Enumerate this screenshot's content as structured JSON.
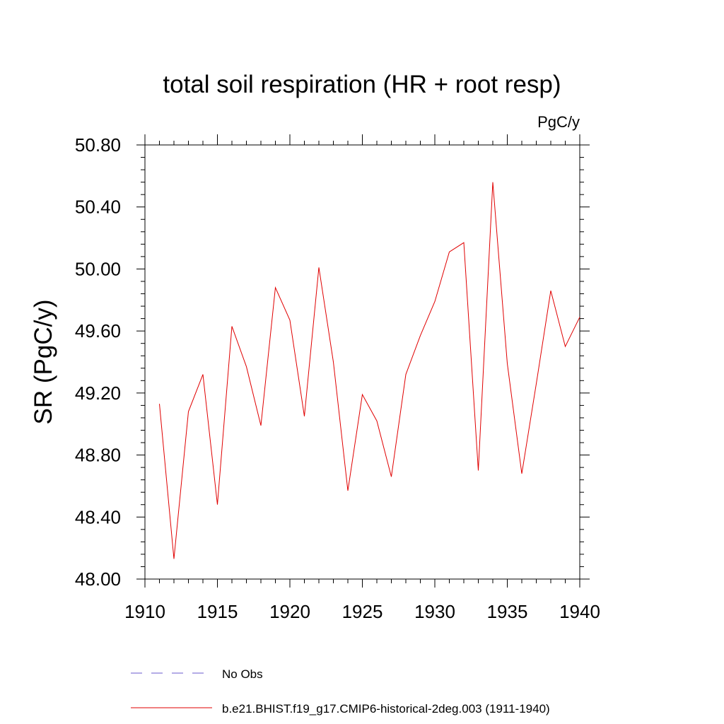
{
  "chart_data": {
    "type": "line",
    "title": "total soil respiration (HR + root resp)",
    "units": "PgC/y",
    "xlabel": "",
    "ylabel": "SR  (PgC/y)",
    "xlim": [
      1910,
      1940
    ],
    "ylim": [
      48.0,
      50.8
    ],
    "x_ticks": [
      1910,
      1915,
      1920,
      1925,
      1930,
      1935,
      1940
    ],
    "y_ticks": [
      48.0,
      48.4,
      48.8,
      49.2,
      49.6,
      50.0,
      50.4,
      50.8
    ],
    "x_tick_labels": [
      "1910",
      "1915",
      "1920",
      "1925",
      "1930",
      "1935",
      "1940"
    ],
    "y_tick_labels": [
      "48.00",
      "48.40",
      "48.80",
      "49.20",
      "49.60",
      "50.00",
      "50.40",
      "50.80"
    ],
    "grid": false,
    "legend_position": "bottom",
    "series": [
      {
        "name": "b.e21.BHIST.f19_g17.CMIP6-historical-2deg.003 (1911-1940)",
        "color": "#e00000",
        "style": "solid",
        "x": [
          1911,
          1912,
          1913,
          1914,
          1915,
          1916,
          1917,
          1918,
          1919,
          1920,
          1921,
          1922,
          1923,
          1924,
          1925,
          1926,
          1927,
          1928,
          1929,
          1930,
          1931,
          1932,
          1933,
          1934,
          1935,
          1936,
          1937,
          1938,
          1939,
          1940
        ],
        "values": [
          49.13,
          48.13,
          49.08,
          49.32,
          48.48,
          49.63,
          49.37,
          48.99,
          49.88,
          49.67,
          49.05,
          50.01,
          49.4,
          48.57,
          49.19,
          49.02,
          48.66,
          49.32,
          49.57,
          49.79,
          50.11,
          50.17,
          48.7,
          50.56,
          49.39,
          48.68,
          49.26,
          49.86,
          49.5,
          49.69
        ]
      }
    ],
    "legend": [
      {
        "label": "No Obs",
        "color": "#6a5acd",
        "style": "dashed"
      },
      {
        "label": "b.e21.BHIST.f19_g17.CMIP6-historical-2deg.003 (1911-1940)",
        "color": "#e00000",
        "style": "solid"
      }
    ]
  }
}
